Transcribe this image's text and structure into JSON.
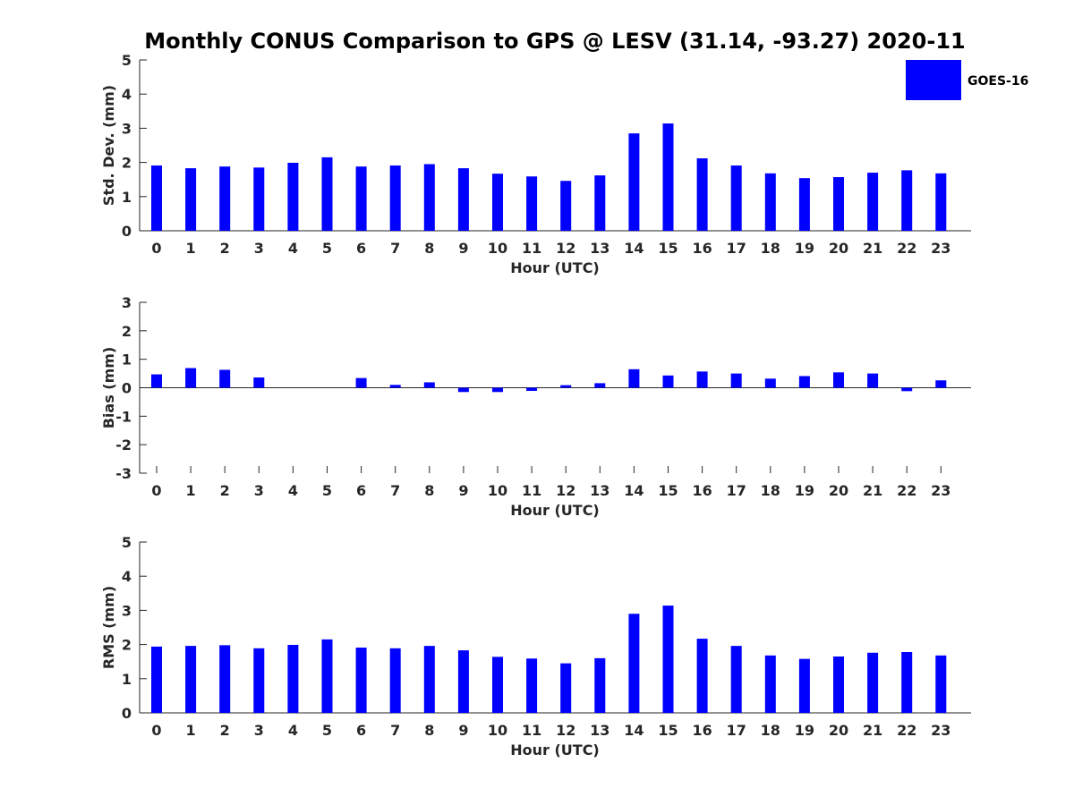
{
  "chart_data": {
    "title": "Monthly CONUS Comparison to GPS @ LESV (31.14, -93.27) 2020-11",
    "legend": {
      "label": "GOES-16",
      "color": "#0000ff",
      "placement": "top-right"
    },
    "bar_color": "#0000ff",
    "panels": [
      {
        "type": "bar",
        "xlabel": "Hour (UTC)",
        "ylabel": "Std. Dev. (mm)",
        "ylim": [
          0,
          5
        ],
        "yticks": [
          "0",
          "1",
          "2",
          "3",
          "4",
          "5"
        ],
        "categories": [
          "0",
          "1",
          "2",
          "3",
          "4",
          "5",
          "6",
          "7",
          "8",
          "9",
          "10",
          "11",
          "12",
          "13",
          "14",
          "15",
          "16",
          "17",
          "18",
          "19",
          "20",
          "21",
          "22",
          "23"
        ],
        "series": [
          {
            "name": "GOES-16",
            "values": [
              1.91,
              1.83,
              1.88,
              1.85,
              1.99,
              2.15,
              1.88,
              1.91,
              1.95,
              1.83,
              1.67,
              1.59,
              1.46,
              1.62,
              2.85,
              3.14,
              2.12,
              1.91,
              1.68,
              1.54,
              1.57,
              1.7,
              1.77,
              1.68
            ]
          }
        ]
      },
      {
        "type": "bar",
        "xlabel": "Hour (UTC)",
        "ylabel": "Bias (mm)",
        "ylim": [
          -3,
          3
        ],
        "yticks": [
          "-3",
          "-2",
          "-1",
          "0",
          "1",
          "2",
          "3"
        ],
        "categories": [
          "0",
          "1",
          "2",
          "3",
          "4",
          "5",
          "6",
          "7",
          "8",
          "9",
          "10",
          "11",
          "12",
          "13",
          "14",
          "15",
          "16",
          "17",
          "18",
          "19",
          "20",
          "21",
          "22",
          "23"
        ],
        "series": [
          {
            "name": "GOES-16",
            "values": [
              0.47,
              0.69,
              0.63,
              0.36,
              0.0,
              0.0,
              0.34,
              0.1,
              0.19,
              -0.15,
              -0.15,
              -0.11,
              0.09,
              0.16,
              0.65,
              0.43,
              0.57,
              0.5,
              0.32,
              0.41,
              0.54,
              0.5,
              -0.12,
              0.26
            ]
          }
        ]
      },
      {
        "type": "bar",
        "xlabel": "Hour (UTC)",
        "ylabel": "RMS (mm)",
        "ylim": [
          0,
          5
        ],
        "yticks": [
          "0",
          "1",
          "2",
          "3",
          "4",
          "5"
        ],
        "categories": [
          "0",
          "1",
          "2",
          "3",
          "4",
          "5",
          "6",
          "7",
          "8",
          "9",
          "10",
          "11",
          "12",
          "13",
          "14",
          "15",
          "16",
          "17",
          "18",
          "19",
          "20",
          "21",
          "22",
          "23"
        ],
        "series": [
          {
            "name": "GOES-16",
            "values": [
              1.94,
              1.96,
              1.98,
              1.89,
              1.99,
              2.15,
              1.91,
              1.89,
              1.96,
              1.83,
              1.64,
              1.59,
              1.45,
              1.6,
              2.9,
              3.14,
              2.17,
              1.96,
              1.68,
              1.58,
              1.65,
              1.76,
              1.78,
              1.68
            ]
          }
        ]
      }
    ]
  }
}
